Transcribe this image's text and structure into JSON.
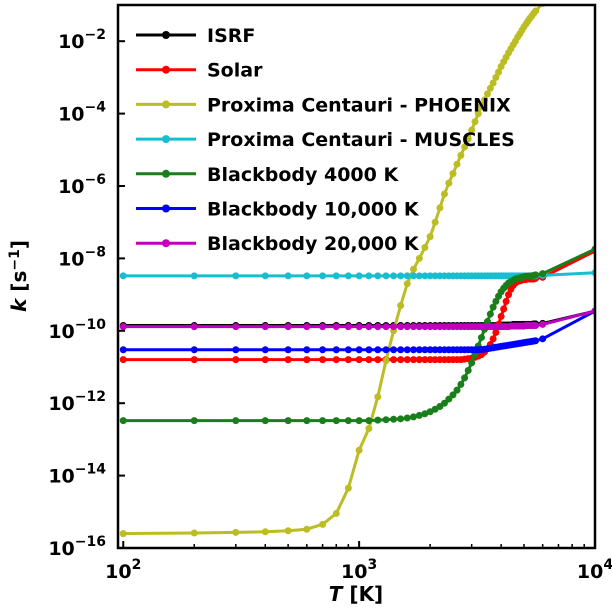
{
  "chart_data": {
    "type": "line",
    "xlabel_var": "T",
    "xlabel_unit": "[K]",
    "ylabel_var": "k",
    "ylabel_unit_base": "[s",
    "ylabel_unit_exp": "−1",
    "ylabel_unit_close": "]",
    "xscale": "log",
    "yscale": "log",
    "xlim": [
      95,
      10000
    ],
    "ylim": [
      1e-16,
      0.1
    ],
    "grid": false,
    "legend_position": "top-left",
    "x_ticks": [
      {
        "value": 100,
        "base": "10",
        "exp": "2"
      },
      {
        "value": 1000,
        "base": "10",
        "exp": "3"
      },
      {
        "value": 10000,
        "base": "10",
        "exp": "4"
      }
    ],
    "y_ticks": [
      {
        "value": 0.01,
        "base": "10",
        "exp": "−2"
      },
      {
        "value": 0.0001,
        "base": "10",
        "exp": "−4"
      },
      {
        "value": 1e-06,
        "base": "10",
        "exp": "−6"
      },
      {
        "value": 1e-08,
        "base": "10",
        "exp": "−8"
      },
      {
        "value": 1e-10,
        "base": "10",
        "exp": "−10"
      },
      {
        "value": 1e-12,
        "base": "10",
        "exp": "−12"
      },
      {
        "value": 1e-14,
        "base": "10",
        "exp": "−14"
      },
      {
        "value": 1e-16,
        "base": "10",
        "exp": "−16"
      }
    ],
    "x": [
      100,
      200,
      300,
      400,
      500,
      600,
      700,
      800,
      900,
      1000,
      1100,
      1200,
      1300,
      1400,
      1500,
      1600,
      1700,
      1800,
      1900,
      2000,
      2100,
      2200,
      2300,
      2400,
      2500,
      2600,
      2700,
      2800,
      2900,
      3000,
      3100,
      3200,
      3300,
      3400,
      3500,
      3600,
      3700,
      3800,
      3900,
      4000,
      4100,
      4200,
      4300,
      4400,
      4500,
      4600,
      4700,
      4800,
      4900,
      5000,
      5100,
      5200,
      5300,
      5400,
      5500,
      5600,
      6000,
      10000
    ],
    "series": [
      {
        "name": "ISRF",
        "color": "#000000",
        "values": [
          1.4e-10,
          1.4e-10,
          1.4e-10,
          1.4e-10,
          1.4e-10,
          1.4e-10,
          1.4e-10,
          1.4e-10,
          1.4e-10,
          1.4e-10,
          1.4e-10,
          1.4e-10,
          1.4e-10,
          1.4e-10,
          1.4e-10,
          1.4e-10,
          1.4e-10,
          1.4e-10,
          1.4e-10,
          1.4e-10,
          1.4e-10,
          1.4e-10,
          1.4e-10,
          1.4e-10,
          1.4e-10,
          1.4e-10,
          1.4e-10,
          1.4e-10,
          1.4e-10,
          1.4e-10,
          1.4e-10,
          1.4e-10,
          1.4e-10,
          1.4e-10,
          1.4e-10,
          1.4e-10,
          1.4e-10,
          1.4e-10,
          1.4e-10,
          1.45e-10,
          1.45e-10,
          1.45e-10,
          1.45e-10,
          1.45e-10,
          1.5e-10,
          1.5e-10,
          1.5e-10,
          1.5e-10,
          1.5e-10,
          1.5e-10,
          1.5e-10,
          1.5e-10,
          1.5e-10,
          1.5e-10,
          1.55e-10,
          1.55e-10,
          1.6e-10,
          3.5e-10
        ]
      },
      {
        "name": "Solar",
        "color": "#ff0000",
        "values": [
          1.6e-11,
          1.6e-11,
          1.6e-11,
          1.6e-11,
          1.6e-11,
          1.6e-11,
          1.6e-11,
          1.6e-11,
          1.6e-11,
          1.6e-11,
          1.6e-11,
          1.6e-11,
          1.6e-11,
          1.6e-11,
          1.6e-11,
          1.6e-11,
          1.6e-11,
          1.6e-11,
          1.6e-11,
          1.6e-11,
          1.6e-11,
          1.6e-11,
          1.6e-11,
          1.6e-11,
          1.6e-11,
          1.6e-11,
          1.6e-11,
          1.65e-11,
          1.7e-11,
          1.75e-11,
          1.85e-11,
          2e-11,
          2.2e-11,
          2.6e-11,
          3.2e-11,
          4.2e-11,
          6e-11,
          9e-11,
          1.5e-10,
          2.5e-10,
          4e-10,
          6.5e-10,
          1e-09,
          1.4e-09,
          1.8e-09,
          2.1e-09,
          2.3e-09,
          2.4e-09,
          2.5e-09,
          2.6e-09,
          2.6e-09,
          2.7e-09,
          2.7e-09,
          2.7e-09,
          2.7e-09,
          2.8e-09,
          3e-09,
          1.6e-08
        ]
      },
      {
        "name": "Proxima Centauri - PHOENIX",
        "color": "#bcbd22",
        "values": [
          2.5e-16,
          2.6e-16,
          2.7e-16,
          2.8e-16,
          3e-16,
          3.3e-16,
          4.5e-16,
          9e-16,
          4.5e-15,
          5e-14,
          2e-13,
          1.5e-12,
          1.5e-11,
          1e-10,
          5e-10,
          2e-09,
          5e-09,
          1e-08,
          2e-08,
          4e-08,
          1e-07,
          2.5e-07,
          6e-07,
          1.2e-06,
          2.2e-06,
          4e-06,
          7e-06,
          1.2e-05,
          2e-05,
          3.5e-05,
          6e-05,
          0.0001,
          0.00016,
          0.00024,
          0.00035,
          0.0005,
          0.0007,
          0.001,
          0.0014,
          0.002,
          0.0027,
          0.0036,
          0.0048,
          0.0062,
          0.008,
          0.01,
          0.013,
          0.016,
          0.02,
          0.025,
          0.03,
          0.036,
          0.043,
          0.05,
          0.059,
          0.068,
          0.11,
          1.0
        ]
      },
      {
        "name": "Proxima Centauri - MUSCLES",
        "color": "#17becf",
        "values": [
          3.3e-09,
          3.3e-09,
          3.3e-09,
          3.3e-09,
          3.3e-09,
          3.3e-09,
          3.3e-09,
          3.3e-09,
          3.3e-09,
          3.3e-09,
          3.3e-09,
          3.3e-09,
          3.3e-09,
          3.3e-09,
          3.3e-09,
          3.3e-09,
          3.3e-09,
          3.3e-09,
          3.3e-09,
          3.3e-09,
          3.3e-09,
          3.3e-09,
          3.3e-09,
          3.3e-09,
          3.3e-09,
          3.3e-09,
          3.3e-09,
          3.3e-09,
          3.3e-09,
          3.3e-09,
          3.3e-09,
          3.3e-09,
          3.3e-09,
          3.3e-09,
          3.3e-09,
          3.3e-09,
          3.3e-09,
          3.3e-09,
          3.3e-09,
          3.3e-09,
          3.3e-09,
          3.3e-09,
          3.3e-09,
          3.3e-09,
          3.3e-09,
          3.3e-09,
          3.3e-09,
          3.3e-09,
          3.3e-09,
          3.3e-09,
          3.3e-09,
          3.3e-09,
          3.3e-09,
          3.3e-09,
          3.3e-09,
          3.3e-09,
          3.4e-09,
          4e-09
        ]
      },
      {
        "name": "Blackbody 4000 K",
        "color": "#1a7f1a",
        "values": [
          3.3e-13,
          3.3e-13,
          3.3e-13,
          3.3e-13,
          3.3e-13,
          3.3e-13,
          3.3e-13,
          3.3e-13,
          3.3e-13,
          3.3e-13,
          3.3e-13,
          3.4e-13,
          3.5e-13,
          3.6e-13,
          3.7e-13,
          3.9e-13,
          4.2e-13,
          4.6e-13,
          5.1e-13,
          5.8e-13,
          6.8e-13,
          8.1e-13,
          1e-12,
          1.3e-12,
          1.7e-12,
          2.3e-12,
          3.3e-12,
          5e-12,
          8e-12,
          1.3e-11,
          2.2e-11,
          3.8e-11,
          6.5e-11,
          1.1e-10,
          1.8e-10,
          2.9e-10,
          4.5e-10,
          6.5e-10,
          9e-10,
          1.2e-09,
          1.5e-09,
          1.8e-09,
          2.1e-09,
          2.3e-09,
          2.5e-09,
          2.7e-09,
          2.8e-09,
          2.9e-09,
          3e-09,
          3.1e-09,
          3.2e-09,
          3.2e-09,
          3.3e-09,
          3.3e-09,
          3.4e-09,
          3.5e-09,
          3.8e-09,
          1.8e-08
        ]
      },
      {
        "name": "Blackbody 10,000 K",
        "color": "#0000ff",
        "values": [
          3e-11,
          3e-11,
          3e-11,
          3e-11,
          3e-11,
          3e-11,
          3e-11,
          3e-11,
          3e-11,
          3e-11,
          3e-11,
          3e-11,
          3e-11,
          3e-11,
          3e-11,
          3e-11,
          3e-11,
          3e-11,
          3e-11,
          3e-11,
          3e-11,
          3e-11,
          3e-11,
          3e-11,
          3e-11,
          3e-11,
          3e-11,
          3e-11,
          3e-11,
          3e-11,
          3e-11,
          3e-11,
          3.05e-11,
          3.1e-11,
          3.2e-11,
          3.3e-11,
          3.4e-11,
          3.5e-11,
          3.6e-11,
          3.7e-11,
          3.8e-11,
          3.9e-11,
          4e-11,
          4.1e-11,
          4.2e-11,
          4.3e-11,
          4.4e-11,
          4.5e-11,
          4.6e-11,
          4.7e-11,
          4.8e-11,
          4.9e-11,
          5e-11,
          5.1e-11,
          5.2e-11,
          5.3e-11,
          6e-11,
          3.5e-10
        ]
      },
      {
        "name": "Blackbody 20,000 K",
        "color": "#bf00bf",
        "values": [
          1.3e-10,
          1.3e-10,
          1.3e-10,
          1.3e-10,
          1.3e-10,
          1.3e-10,
          1.3e-10,
          1.3e-10,
          1.3e-10,
          1.3e-10,
          1.3e-10,
          1.3e-10,
          1.3e-10,
          1.3e-10,
          1.3e-10,
          1.3e-10,
          1.3e-10,
          1.3e-10,
          1.3e-10,
          1.3e-10,
          1.3e-10,
          1.3e-10,
          1.3e-10,
          1.3e-10,
          1.3e-10,
          1.3e-10,
          1.3e-10,
          1.3e-10,
          1.3e-10,
          1.3e-10,
          1.3e-10,
          1.3e-10,
          1.3e-10,
          1.3e-10,
          1.3e-10,
          1.3e-10,
          1.3e-10,
          1.3e-10,
          1.3e-10,
          1.3e-10,
          1.3e-10,
          1.3e-10,
          1.3e-10,
          1.35e-10,
          1.35e-10,
          1.35e-10,
          1.35e-10,
          1.35e-10,
          1.35e-10,
          1.35e-10,
          1.4e-10,
          1.4e-10,
          1.4e-10,
          1.4e-10,
          1.4e-10,
          1.4e-10,
          1.5e-10,
          3.5e-10
        ]
      }
    ]
  }
}
